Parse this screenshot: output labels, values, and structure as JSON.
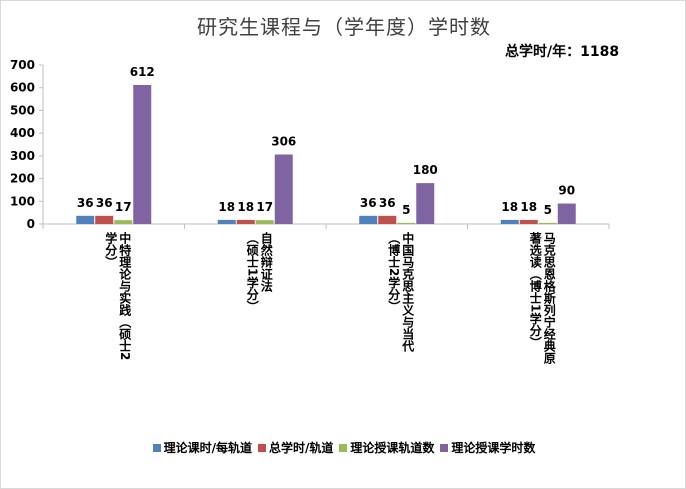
{
  "chart_data": {
    "type": "bar",
    "title": "研究生课程与（学年度）学时数",
    "subtitle": "总学时/年：1188",
    "categories": [
      "中特理论与实践（硕士2学分）",
      "自然辩证法（硕士1学分）",
      "中国马克思主义与当代（博士2学分）",
      "马克思恩格斯列宁经典原著选读（博士1学分）"
    ],
    "category_lines": [
      [
        "中特理论与实践（硕士2",
        "学分）"
      ],
      [
        "自然辩证法",
        "（硕士1学分）"
      ],
      [
        "中国马克思主义与当代",
        "（博士2学分）"
      ],
      [
        "马克思恩格斯列宁经典原",
        "著选读（博士1学分）"
      ]
    ],
    "series": [
      {
        "name": "理论课时/每轨道",
        "color": "#4f81bd",
        "values": [
          36,
          18,
          36,
          18
        ]
      },
      {
        "name": "总学时/轨道",
        "color": "#c0504d",
        "values": [
          36,
          18,
          36,
          18
        ]
      },
      {
        "name": "理论授课轨道数",
        "color": "#9bbb59",
        "values": [
          17,
          17,
          5,
          5
        ]
      },
      {
        "name": "理论授课学时数",
        "color": "#8064a2",
        "values": [
          612,
          306,
          180,
          90
        ]
      }
    ],
    "ylim": [
      0,
      700
    ],
    "yticks": [
      0,
      100,
      200,
      300,
      400,
      500,
      600,
      700
    ],
    "grid": false,
    "legend": "bottom",
    "xlabel": "",
    "ylabel": ""
  }
}
